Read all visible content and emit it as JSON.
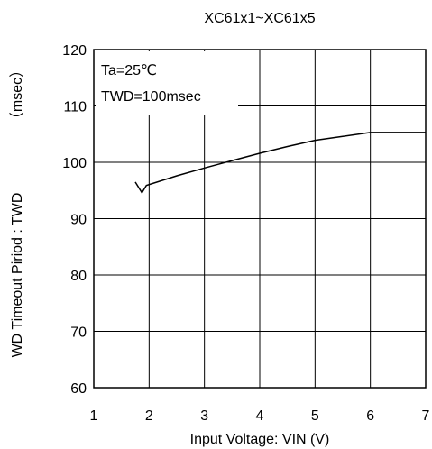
{
  "chart_data": {
    "type": "line",
    "title": "XC61x1~XC61x5",
    "xlabel": "Input Voltage:  VIN (V)",
    "ylabel": "WD Timeout Piriod : TWD",
    "ylabel_unit": "（msec）",
    "xlim": [
      1,
      7
    ],
    "ylim": [
      60,
      120
    ],
    "x_ticks": [
      1,
      2,
      3,
      4,
      5,
      6,
      7
    ],
    "y_ticks": [
      60,
      70,
      80,
      90,
      100,
      110,
      120
    ],
    "grid": true,
    "annotations": [
      "Ta=25℃",
      "TWD=100msec"
    ],
    "series": [
      {
        "x": [
          1.75,
          1.87,
          1.95,
          2.5,
          3.0,
          3.5,
          4.0,
          4.5,
          5.0,
          5.5,
          6.0,
          6.5,
          7.0
        ],
        "y": [
          96.5,
          94.6,
          95.9,
          97.6,
          99.0,
          100.3,
          101.6,
          102.8,
          103.9,
          104.6,
          105.3,
          105.3,
          105.3
        ]
      }
    ]
  }
}
